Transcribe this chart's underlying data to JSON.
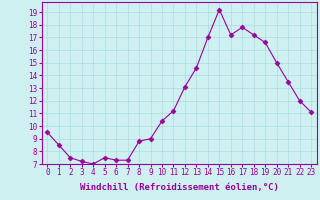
{
  "x": [
    0,
    1,
    2,
    3,
    4,
    5,
    6,
    7,
    8,
    9,
    10,
    11,
    12,
    13,
    14,
    15,
    16,
    17,
    18,
    19,
    20,
    21,
    22,
    23
  ],
  "y": [
    9.5,
    8.5,
    7.5,
    7.2,
    7.0,
    7.5,
    7.3,
    7.3,
    8.8,
    9.0,
    10.4,
    11.2,
    13.1,
    14.6,
    17.0,
    19.2,
    17.2,
    17.8,
    17.2,
    16.6,
    15.0,
    13.5,
    12.0,
    11.1
  ],
  "xlim": [
    -0.5,
    23.5
  ],
  "ylim": [
    7,
    19.8
  ],
  "yticks": [
    7,
    8,
    9,
    10,
    11,
    12,
    13,
    14,
    15,
    16,
    17,
    18,
    19
  ],
  "xticks": [
    0,
    1,
    2,
    3,
    4,
    5,
    6,
    7,
    8,
    9,
    10,
    11,
    12,
    13,
    14,
    15,
    16,
    17,
    18,
    19,
    20,
    21,
    22,
    23
  ],
  "xlabel": "Windchill (Refroidissement éolien,°C)",
  "line_color": "#990099",
  "marker": "D",
  "marker_size": 2.5,
  "bg_color": "#cff0f0",
  "grid_color": "#aadddd",
  "label_fontsize": 6.5,
  "tick_fontsize": 5.5
}
